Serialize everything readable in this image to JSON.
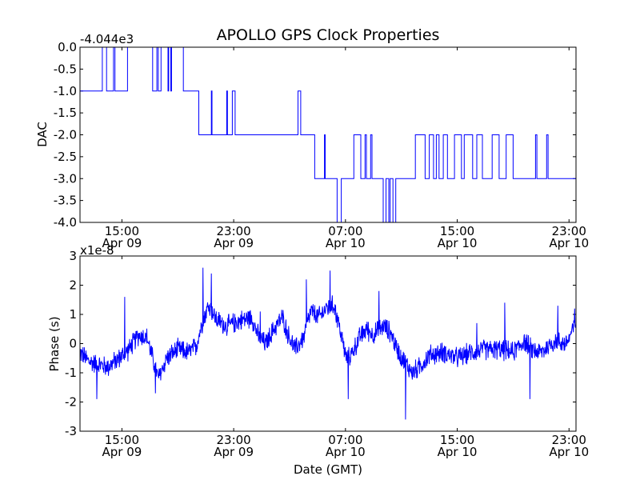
{
  "chart_data": [
    {
      "type": "line",
      "title": "APOLLO GPS Clock Properties",
      "ylabel": "DAC",
      "offset_label": "-4.044e3",
      "ylim": [
        -4.0,
        0.0
      ],
      "yticks": [
        {
          "value": 0.0,
          "label": "0.0"
        },
        {
          "value": -0.5,
          "label": "-0.5"
        },
        {
          "value": -1.0,
          "label": "-1.0"
        },
        {
          "value": -1.5,
          "label": "-1.5"
        },
        {
          "value": -2.0,
          "label": "-2.0"
        },
        {
          "value": -2.5,
          "label": "-2.5"
        },
        {
          "value": -3.0,
          "label": "-3.0"
        },
        {
          "value": -3.5,
          "label": "-3.5"
        },
        {
          "value": -4.0,
          "label": "-4.0"
        }
      ],
      "xlim_hours": [
        0,
        35.5
      ],
      "xticks": [
        {
          "hour": 3,
          "line1": "15:00",
          "line2": "Apr 09"
        },
        {
          "hour": 11,
          "line1": "23:00",
          "line2": "Apr 09"
        },
        {
          "hour": 19,
          "line1": "07:00",
          "line2": "Apr 10"
        },
        {
          "hour": 27,
          "line1": "15:00",
          "line2": "Apr 10"
        },
        {
          "hour": 35,
          "line1": "23:00",
          "line2": "Apr 10"
        }
      ],
      "x_unit": "hours after 12:00 Apr 09 (GMT)",
      "series": [
        {
          "name": "DAC",
          "color": "#0000ff",
          "points": [
            [
              0,
              -1
            ],
            [
              1.6,
              -1
            ],
            [
              1.6,
              0
            ],
            [
              1.9,
              0
            ],
            [
              1.9,
              -1
            ],
            [
              2.4,
              -1
            ],
            [
              2.4,
              0
            ],
            [
              2.5,
              0
            ],
            [
              2.5,
              -1
            ],
            [
              3.4,
              -1
            ],
            [
              3.4,
              0
            ],
            [
              5.2,
              0
            ],
            [
              5.2,
              -1
            ],
            [
              5.5,
              -1
            ],
            [
              5.5,
              0
            ],
            [
              5.6,
              0
            ],
            [
              5.6,
              -1
            ],
            [
              5.8,
              -1
            ],
            [
              5.8,
              0
            ],
            [
              6.3,
              0
            ],
            [
              6.3,
              -1
            ],
            [
              6.35,
              -1
            ],
            [
              6.35,
              0
            ],
            [
              6.5,
              0
            ],
            [
              6.5,
              -1
            ],
            [
              6.55,
              -1
            ],
            [
              6.55,
              0
            ],
            [
              7.4,
              0
            ],
            [
              7.4,
              -1
            ],
            [
              8.5,
              -1
            ],
            [
              8.5,
              -2
            ],
            [
              9.4,
              -2
            ],
            [
              9.4,
              -1
            ],
            [
              9.45,
              -1
            ],
            [
              9.45,
              -2
            ],
            [
              10.5,
              -2
            ],
            [
              10.5,
              -1
            ],
            [
              10.55,
              -1
            ],
            [
              10.55,
              -2
            ],
            [
              10.9,
              -2
            ],
            [
              10.9,
              -1
            ],
            [
              11.1,
              -1
            ],
            [
              11.1,
              -2
            ],
            [
              15.6,
              -2
            ],
            [
              15.6,
              -1
            ],
            [
              15.8,
              -1
            ],
            [
              15.8,
              -2
            ],
            [
              16.8,
              -2
            ],
            [
              16.8,
              -3
            ],
            [
              17.5,
              -3
            ],
            [
              17.5,
              -2
            ],
            [
              17.55,
              -2
            ],
            [
              17.55,
              -3
            ],
            [
              18.4,
              -3
            ],
            [
              18.4,
              -4
            ],
            [
              18.7,
              -4
            ],
            [
              18.7,
              -3
            ],
            [
              19.6,
              -3
            ],
            [
              19.6,
              -2
            ],
            [
              20.1,
              -2
            ],
            [
              20.1,
              -3
            ],
            [
              20.4,
              -3
            ],
            [
              20.4,
              -2
            ],
            [
              20.5,
              -2
            ],
            [
              20.5,
              -3
            ],
            [
              20.8,
              -3
            ],
            [
              20.8,
              -2
            ],
            [
              20.9,
              -2
            ],
            [
              20.9,
              -3
            ],
            [
              21.7,
              -3
            ],
            [
              21.7,
              -4
            ],
            [
              21.9,
              -4
            ],
            [
              21.9,
              -3
            ],
            [
              22.1,
              -3
            ],
            [
              22.1,
              -4
            ],
            [
              22.2,
              -4
            ],
            [
              22.2,
              -3
            ],
            [
              22.4,
              -3
            ],
            [
              22.4,
              -4
            ],
            [
              22.6,
              -4
            ],
            [
              22.6,
              -3
            ],
            [
              24.0,
              -3
            ],
            [
              24.0,
              -2
            ],
            [
              24.7,
              -2
            ],
            [
              24.7,
              -3
            ],
            [
              25.0,
              -3
            ],
            [
              25.0,
              -2
            ],
            [
              25.3,
              -2
            ],
            [
              25.3,
              -3
            ],
            [
              25.5,
              -3
            ],
            [
              25.5,
              -2
            ],
            [
              25.7,
              -2
            ],
            [
              25.7,
              -3
            ],
            [
              26.0,
              -3
            ],
            [
              26.0,
              -2
            ],
            [
              26.3,
              -2
            ],
            [
              26.3,
              -3
            ],
            [
              26.8,
              -3
            ],
            [
              26.8,
              -2
            ],
            [
              27.3,
              -2
            ],
            [
              27.3,
              -3
            ],
            [
              27.5,
              -3
            ],
            [
              27.5,
              -2
            ],
            [
              28.1,
              -2
            ],
            [
              28.1,
              -3
            ],
            [
              28.4,
              -3
            ],
            [
              28.4,
              -2
            ],
            [
              28.8,
              -2
            ],
            [
              28.8,
              -3
            ],
            [
              29.5,
              -3
            ],
            [
              29.5,
              -2
            ],
            [
              30.0,
              -2
            ],
            [
              30.0,
              -3
            ],
            [
              30.5,
              -3
            ],
            [
              30.5,
              -2
            ],
            [
              31.0,
              -2
            ],
            [
              31.0,
              -3
            ],
            [
              32.6,
              -3
            ],
            [
              32.6,
              -2
            ],
            [
              32.7,
              -2
            ],
            [
              32.7,
              -3
            ],
            [
              33.4,
              -3
            ],
            [
              33.4,
              -2
            ],
            [
              33.5,
              -2
            ],
            [
              33.5,
              -3
            ],
            [
              35.5,
              -3
            ]
          ]
        }
      ]
    },
    {
      "type": "line",
      "ylabel": "Phase (s)",
      "xlabel": "Date (GMT)",
      "offset_label": "x1e-8",
      "ylim": [
        -3,
        3
      ],
      "yticks": [
        {
          "value": 3,
          "label": "3"
        },
        {
          "value": 2,
          "label": "2"
        },
        {
          "value": 1,
          "label": "1"
        },
        {
          "value": 0,
          "label": "0"
        },
        {
          "value": -1,
          "label": "-1"
        },
        {
          "value": -2,
          "label": "-2"
        },
        {
          "value": -3,
          "label": "-3"
        }
      ],
      "xlim_hours": [
        0,
        35.5
      ],
      "xticks": [
        {
          "hour": 3,
          "line1": "15:00",
          "line2": "Apr 09"
        },
        {
          "hour": 11,
          "line1": "23:00",
          "line2": "Apr 09"
        },
        {
          "hour": 19,
          "line1": "07:00",
          "line2": "Apr 10"
        },
        {
          "hour": 27,
          "line1": "15:00",
          "line2": "Apr 10"
        },
        {
          "hour": 35,
          "line1": "23:00",
          "line2": "Apr 10"
        }
      ],
      "x_unit": "hours after 12:00 Apr 09 (GMT)",
      "series": [
        {
          "name": "Phase",
          "color": "#0000ff",
          "noise_amplitude": 0.35,
          "trend": [
            [
              0,
              -0.3
            ],
            [
              0.6,
              -0.6
            ],
            [
              1.2,
              -0.7
            ],
            [
              2.0,
              -0.8
            ],
            [
              2.8,
              -0.5
            ],
            [
              3.5,
              -0.2
            ],
            [
              4.2,
              0.3
            ],
            [
              4.8,
              0.2
            ],
            [
              5.2,
              -0.5
            ],
            [
              5.6,
              -1.2
            ],
            [
              6.2,
              -0.5
            ],
            [
              7.0,
              -0.2
            ],
            [
              7.8,
              -0.3
            ],
            [
              8.3,
              -0.1
            ],
            [
              8.8,
              0.8
            ],
            [
              9.2,
              1.3
            ],
            [
              9.8,
              0.8
            ],
            [
              10.5,
              0.6
            ],
            [
              11.5,
              0.8
            ],
            [
              12.3,
              0.9
            ],
            [
              12.8,
              0.2
            ],
            [
              13.3,
              0.0
            ],
            [
              14.0,
              0.6
            ],
            [
              14.5,
              0.9
            ],
            [
              14.9,
              0.3
            ],
            [
              15.4,
              -0.2
            ],
            [
              16.0,
              0.2
            ],
            [
              16.5,
              1.1
            ],
            [
              17.1,
              0.9
            ],
            [
              17.6,
              1.2
            ],
            [
              18.2,
              1.3
            ],
            [
              18.6,
              0.5
            ],
            [
              19.1,
              -0.6
            ],
            [
              19.6,
              -0.2
            ],
            [
              20.0,
              0.2
            ],
            [
              20.5,
              0.5
            ],
            [
              21.0,
              0.3
            ],
            [
              21.7,
              0.6
            ],
            [
              22.2,
              0.4
            ],
            [
              22.7,
              -0.2
            ],
            [
              23.2,
              -0.6
            ],
            [
              23.8,
              -1.0
            ],
            [
              24.3,
              -0.8
            ],
            [
              25.0,
              -0.4
            ],
            [
              26.0,
              -0.3
            ],
            [
              27.0,
              -0.5
            ],
            [
              28.0,
              -0.3
            ],
            [
              29.0,
              -0.2
            ],
            [
              30.0,
              -0.2
            ],
            [
              31.0,
              -0.3
            ],
            [
              31.8,
              0.1
            ],
            [
              32.3,
              -0.2
            ],
            [
              33.0,
              -0.3
            ],
            [
              34.0,
              0.1
            ],
            [
              34.8,
              0.0
            ],
            [
              35.5,
              0.7
            ]
          ],
          "spikes": [
            [
              1.2,
              -1.9
            ],
            [
              3.2,
              1.6
            ],
            [
              5.4,
              -1.7
            ],
            [
              8.8,
              2.6
            ],
            [
              9.4,
              2.4
            ],
            [
              12.9,
              1.1
            ],
            [
              16.2,
              2.2
            ],
            [
              17.9,
              2.5
            ],
            [
              19.2,
              -1.9
            ],
            [
              21.4,
              1.8
            ],
            [
              23.3,
              -2.6
            ],
            [
              25.0,
              -0.7
            ],
            [
              28.4,
              0.7
            ],
            [
              30.4,
              1.4
            ],
            [
              32.2,
              -1.9
            ],
            [
              34.2,
              1.3
            ],
            [
              35.4,
              1.2
            ]
          ]
        }
      ]
    }
  ]
}
